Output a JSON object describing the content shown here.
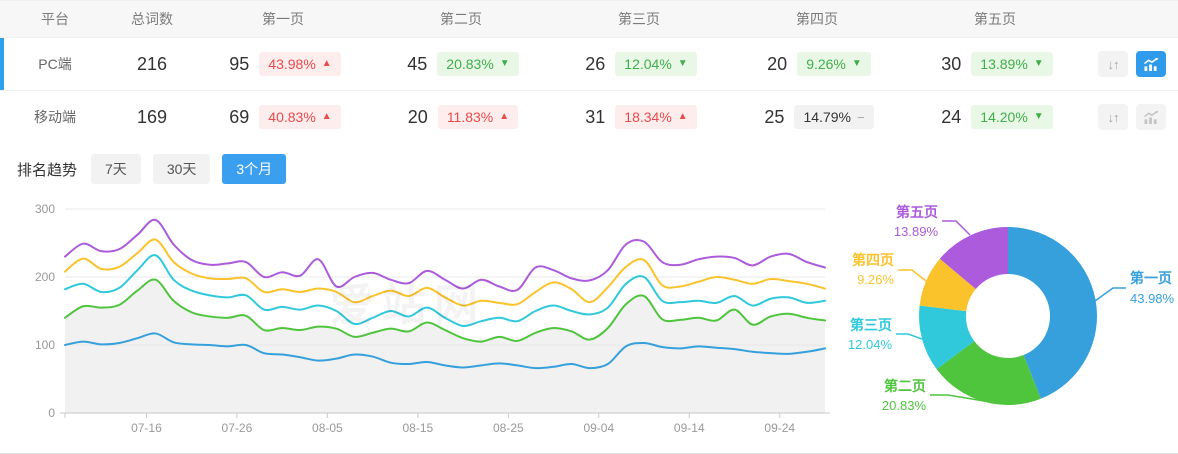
{
  "table": {
    "headers": [
      "平台",
      "总词数",
      "第一页",
      "第二页",
      "第三页",
      "第四页",
      "第五页"
    ],
    "rows": [
      {
        "platform": "PC端",
        "total": "216",
        "active": true,
        "trend_active": true,
        "pages": [
          {
            "count": "95",
            "pct": "43.98%",
            "dir": "up",
            "tone": "red"
          },
          {
            "count": "45",
            "pct": "20.83%",
            "dir": "down",
            "tone": "green"
          },
          {
            "count": "26",
            "pct": "12.04%",
            "dir": "down",
            "tone": "green"
          },
          {
            "count": "20",
            "pct": "9.26%",
            "dir": "down",
            "tone": "green"
          },
          {
            "count": "30",
            "pct": "13.89%",
            "dir": "down",
            "tone": "green"
          }
        ]
      },
      {
        "platform": "移动端",
        "total": "169",
        "active": false,
        "trend_active": false,
        "pages": [
          {
            "count": "69",
            "pct": "40.83%",
            "dir": "up",
            "tone": "red"
          },
          {
            "count": "20",
            "pct": "11.83%",
            "dir": "up",
            "tone": "red"
          },
          {
            "count": "31",
            "pct": "18.34%",
            "dir": "up",
            "tone": "red"
          },
          {
            "count": "25",
            "pct": "14.79%",
            "dir": "flat",
            "tone": "gray"
          },
          {
            "count": "24",
            "pct": "14.20%",
            "dir": "down",
            "tone": "green"
          }
        ]
      }
    ]
  },
  "trend_section": {
    "label": "排名趋势",
    "tabs": [
      {
        "label": "7天",
        "active": false
      },
      {
        "label": "30天",
        "active": false
      },
      {
        "label": "3个月",
        "active": true
      }
    ]
  },
  "watermark": "爱站网",
  "icons": {
    "sort": "sort-arrows-icon",
    "trend": "trend-chart-icon",
    "up": "▲",
    "down": "▼",
    "flat": "−"
  },
  "colors": {
    "accent_blue": "#3b9ff0",
    "active_row_bar": "#2fa1ec",
    "badge_red_bg": "#fdeded",
    "badge_red_text": "#e94b4b",
    "badge_green_bg": "#e9f7e7",
    "badge_green_text": "#3faf4a",
    "badge_gray_bg": "#f2f2f2",
    "series": [
      "#36a0dc",
      "#4fc43d",
      "#30c9dc",
      "#fac32c",
      "#ab5bdb"
    ]
  },
  "chart_data": [
    {
      "type": "line",
      "x_start": "07-07",
      "x_interval_days": 2,
      "x_ticks": [
        "07-16",
        "07-26",
        "08-05",
        "08-15",
        "08-25",
        "09-04",
        "09-14",
        "09-24"
      ],
      "tick_day_offsets": [
        9,
        19,
        29,
        39,
        49,
        59,
        69,
        79
      ],
      "total_span_days": 84,
      "ylim": [
        0,
        300
      ],
      "yticks": [
        "0",
        "100",
        "200",
        "300"
      ],
      "grid": true,
      "legend": "none",
      "area_series": "第二页",
      "area_fill": "#f1f1f1",
      "series": [
        {
          "name": "第一页",
          "color": "#36a0dc",
          "values": [
            100,
            105,
            101,
            103,
            110,
            117,
            104,
            101,
            100,
            98,
            100,
            88,
            86,
            82,
            77,
            80,
            86,
            83,
            74,
            72,
            75,
            70,
            67,
            70,
            73,
            70,
            66,
            68,
            72,
            66,
            72,
            98,
            103,
            97,
            95,
            98,
            96,
            94,
            90,
            88,
            87,
            90,
            95
          ]
        },
        {
          "name": "第二页",
          "color": "#4fc43d",
          "values": [
            140,
            157,
            155,
            159,
            180,
            196,
            165,
            148,
            142,
            140,
            143,
            122,
            125,
            122,
            127,
            124,
            112,
            118,
            124,
            120,
            133,
            122,
            110,
            105,
            112,
            106,
            118,
            125,
            120,
            108,
            125,
            160,
            172,
            138,
            137,
            140,
            136,
            152,
            130,
            142,
            146,
            140,
            136
          ]
        },
        {
          "name": "第三页",
          "color": "#30c9dc",
          "values": [
            182,
            190,
            178,
            184,
            210,
            232,
            196,
            180,
            173,
            170,
            173,
            152,
            156,
            152,
            158,
            150,
            131,
            140,
            150,
            142,
            155,
            140,
            128,
            135,
            140,
            135,
            150,
            158,
            150,
            145,
            155,
            190,
            200,
            165,
            163,
            165,
            162,
            172,
            158,
            168,
            170,
            162,
            165
          ]
        },
        {
          "name": "第四页",
          "color": "#fac32c",
          "values": [
            208,
            227,
            212,
            215,
            235,
            255,
            222,
            205,
            198,
            197,
            198,
            178,
            182,
            178,
            183,
            178,
            163,
            172,
            180,
            172,
            184,
            170,
            158,
            165,
            162,
            160,
            178,
            192,
            182,
            163,
            185,
            215,
            225,
            188,
            186,
            193,
            200,
            196,
            190,
            197,
            194,
            190,
            183
          ]
        },
        {
          "name": "第五页",
          "color": "#ab5bdb",
          "values": [
            230,
            249,
            238,
            241,
            262,
            284,
            248,
            225,
            218,
            220,
            222,
            200,
            207,
            202,
            226,
            186,
            200,
            206,
            196,
            191,
            209,
            196,
            183,
            196,
            186,
            181,
            214,
            210,
            198,
            195,
            210,
            248,
            252,
            222,
            218,
            226,
            230,
            228,
            217,
            230,
            234,
            222,
            214
          ]
        }
      ]
    },
    {
      "type": "donut",
      "slices": [
        {
          "label": "第一页",
          "value": 43.98,
          "pct_label": "43.98%",
          "color": "#36a0dc"
        },
        {
          "label": "第二页",
          "value": 20.83,
          "pct_label": "20.83%",
          "color": "#4fc43d"
        },
        {
          "label": "第三页",
          "value": 12.04,
          "pct_label": "12.04%",
          "color": "#30c9dc"
        },
        {
          "label": "第四页",
          "value": 9.26,
          "pct_label": "9.26%",
          "color": "#fac32c"
        },
        {
          "label": "第五页",
          "value": 13.89,
          "pct_label": "13.89%",
          "color": "#ab5bdb"
        }
      ]
    }
  ]
}
